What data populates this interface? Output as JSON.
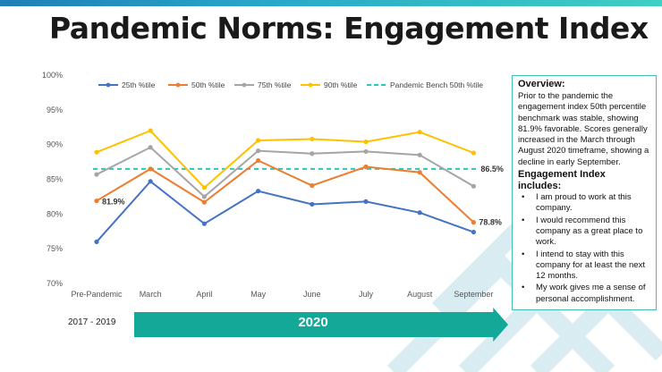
{
  "title": "Pandemic Norms: Engagement Index",
  "colors": {
    "top_bar": "#28a7c8",
    "arrow": "#13a898",
    "panel_border": "#3fbfb0"
  },
  "chart_data": {
    "type": "line",
    "categories": [
      "Pre-Pandemic",
      "March",
      "April",
      "May",
      "June",
      "July",
      "August",
      "September"
    ],
    "y_tick_labels": [
      "100%",
      "95%",
      "90%",
      "85%",
      "80%",
      "75%",
      "70%"
    ],
    "ylim": [
      70,
      100
    ],
    "grid": false,
    "legend_position": "top",
    "series": [
      {
        "name": "25th %tile",
        "color": "#4472c4",
        "values": [
          76.0,
          84.7,
          78.6,
          83.3,
          81.4,
          81.8,
          80.2,
          77.4
        ]
      },
      {
        "name": "50th %tile",
        "color": "#ed7d31",
        "values": [
          81.9,
          86.5,
          81.7,
          87.7,
          84.1,
          86.8,
          86.0,
          78.8
        ]
      },
      {
        "name": "75th %tile",
        "color": "#a5a5a5",
        "values": [
          85.7,
          89.6,
          82.5,
          89.1,
          88.7,
          89.0,
          88.5,
          84.0
        ]
      },
      {
        "name": "90th %tile",
        "color": "#ffc000",
        "values": [
          88.9,
          92.0,
          83.8,
          90.6,
          90.8,
          90.4,
          91.8,
          88.8
        ]
      }
    ],
    "benchmark": {
      "name": "Pandemic Bench 50th %tile",
      "color": "#2ec4b6",
      "value": 86.5
    },
    "data_labels": [
      {
        "text": "81.9%",
        "series": 1,
        "index": 0
      },
      {
        "text": "86.5%",
        "series": "benchmark",
        "index": 7
      },
      {
        "text": "78.8%",
        "series": 1,
        "index": 7
      }
    ]
  },
  "overview": {
    "heading": "Overview:",
    "body": "Prior to the pandemic the engagement index 50th percentile benchmark was stable, showing 81.9% favorable. Scores generally increased in the March through August 2020 timeframe, showing a decline in early September.",
    "includes_heading": "Engagement Index includes:",
    "items": [
      "I am proud to work at this company.",
      "I would recommend this company as a great place to work.",
      "I intend to stay with this company for at least the next 12 months.",
      "My work gives me a sense of personal accomplishment."
    ]
  },
  "timeline": {
    "period_label": "2017 - 2019",
    "year_label": "2020"
  }
}
